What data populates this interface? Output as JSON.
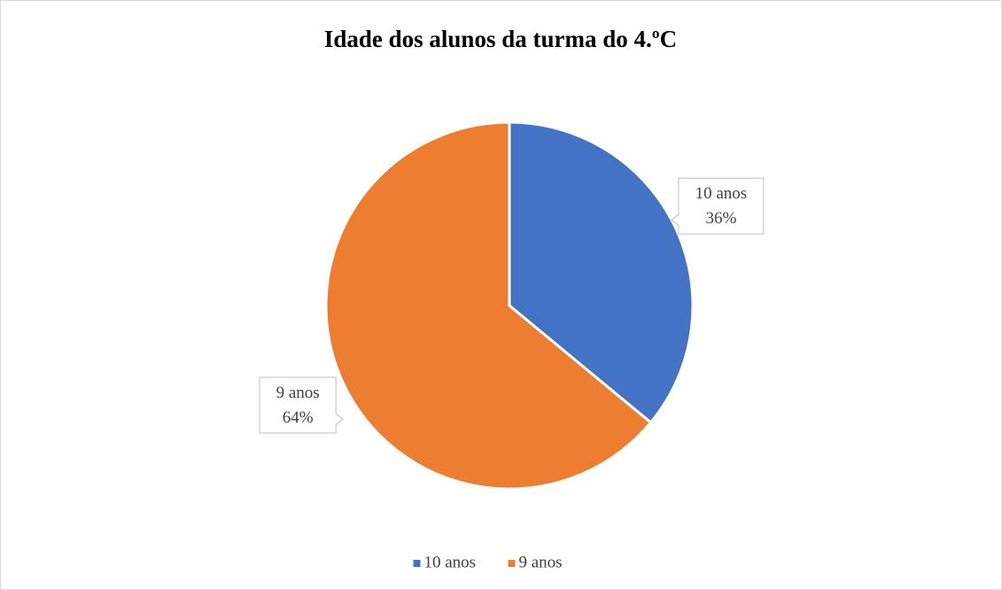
{
  "chart_data": {
    "type": "pie",
    "title": "Idade dos alunos da turma do 4.ºC",
    "categories": [
      "10 anos",
      "9 anos"
    ],
    "values": [
      36,
      64
    ],
    "value_labels": [
      "36%",
      "64%"
    ],
    "colors": [
      "#4472c4",
      "#ed7d31"
    ],
    "legend": "bottom"
  }
}
